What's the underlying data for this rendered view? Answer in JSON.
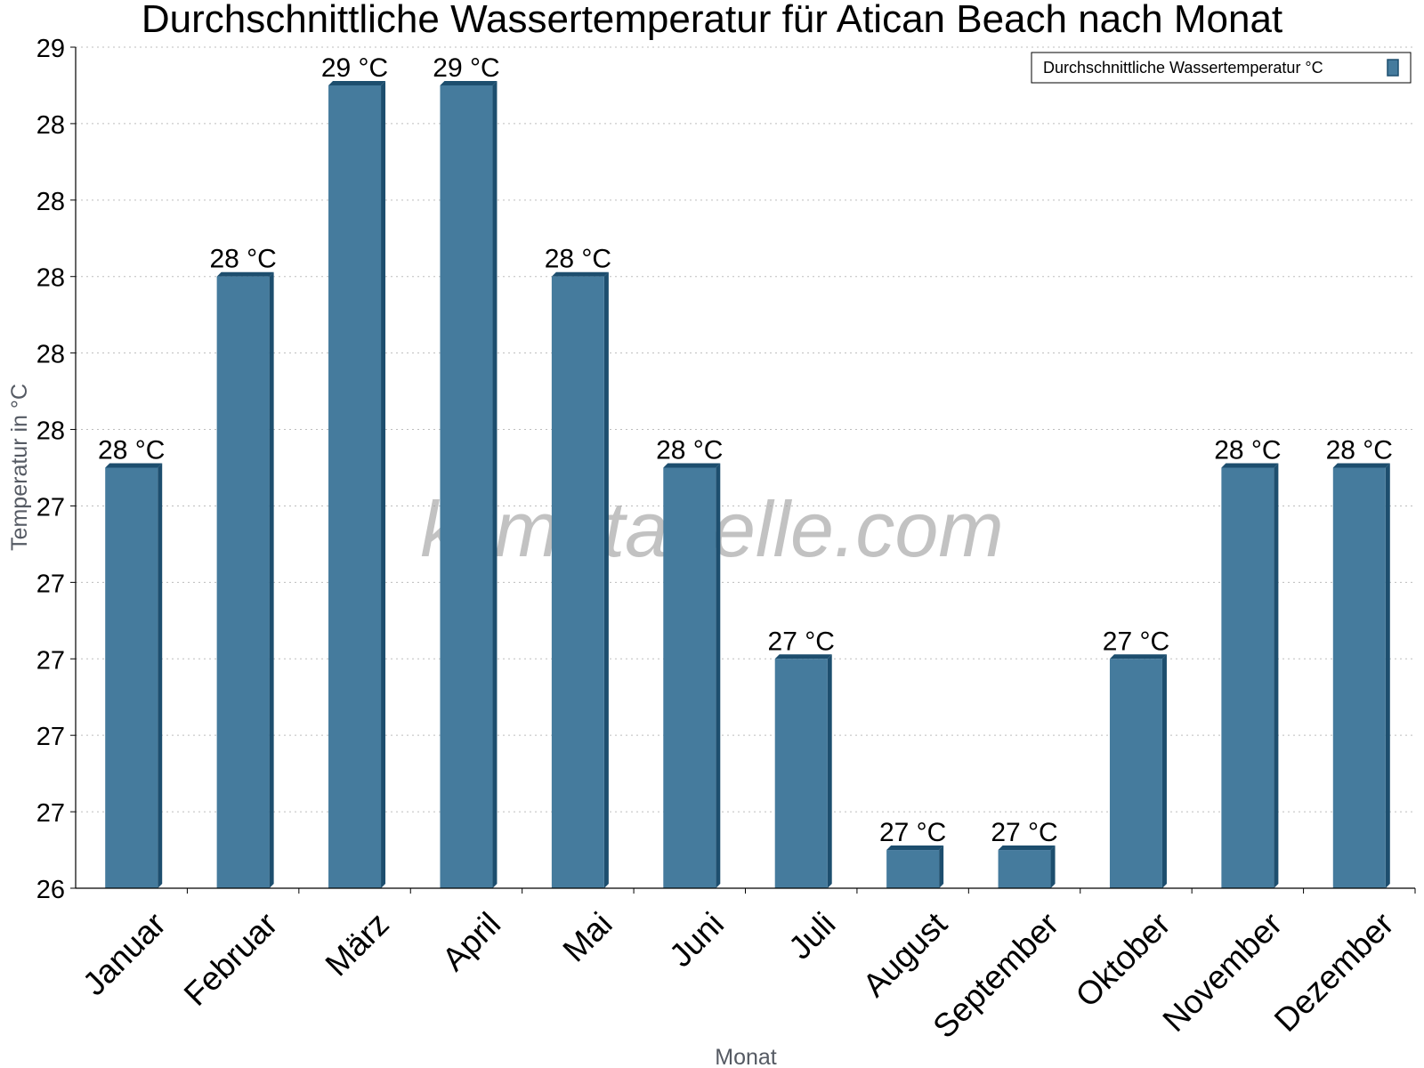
{
  "chart_data": {
    "type": "bar",
    "title": "Durchschnittliche Wassertemperatur für Atican Beach nach Monat",
    "xlabel": "Monat",
    "ylabel": "Temperatur in °C",
    "categories": [
      "Januar",
      "Februar",
      "März",
      "April",
      "Mai",
      "Juni",
      "Juli",
      "August",
      "September",
      "Oktober",
      "November",
      "Dezember"
    ],
    "series": [
      {
        "name": "Durchschnittliche Wassertemperatur °C",
        "values": [
          27.5,
          28.0,
          28.5,
          28.5,
          28.0,
          27.5,
          27.0,
          26.5,
          26.5,
          27.0,
          27.5,
          27.5
        ],
        "labels": [
          "28 °C",
          "28 °C",
          "29 °C",
          "29 °C",
          "28 °C",
          "28 °C",
          "27 °C",
          "27 °C",
          "27 °C",
          "27 °C",
          "28 °C",
          "28 °C"
        ]
      }
    ],
    "ylim": [
      26.4,
      28.6
    ],
    "yticks": [
      26.4,
      26.6,
      26.8,
      27.0,
      27.2,
      27.4,
      27.6,
      27.8,
      28.0,
      28.2,
      28.4,
      28.6
    ],
    "ytick_labels": [
      "26",
      "27",
      "27",
      "27",
      "27",
      "27",
      "28",
      "28",
      "28",
      "28",
      "28",
      "29"
    ],
    "grid": true,
    "legend_position": "top-right",
    "colors": {
      "bar": "#457b9d",
      "bar_edge": "#1d4e6e"
    },
    "watermark": "klimatabelle.com"
  }
}
